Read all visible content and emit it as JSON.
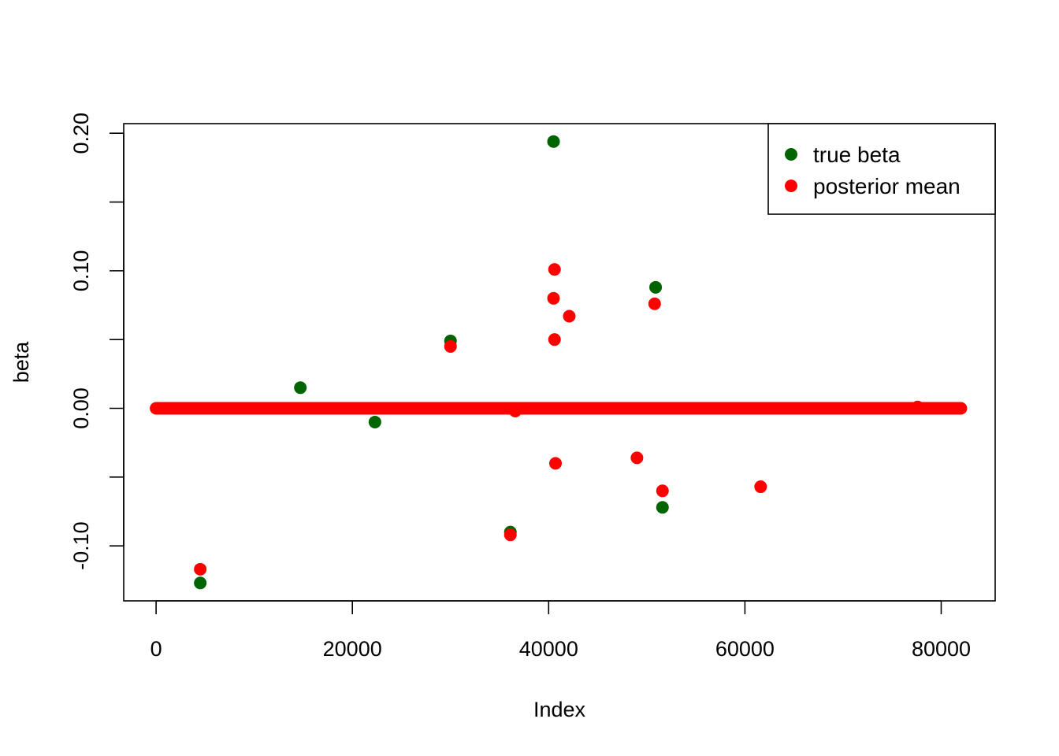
{
  "chart_data": {
    "type": "scatter",
    "title": "",
    "xlabel": "Index",
    "ylabel": "beta",
    "xlim": [
      -3300,
      85500
    ],
    "ylim": [
      -0.14,
      0.207
    ],
    "x_ticks": [
      0,
      20000,
      40000,
      60000,
      80000
    ],
    "x_tick_labels": [
      "0",
      "20000",
      "40000",
      "60000",
      "80000"
    ],
    "y_ticks": [
      -0.1,
      -0.05,
      0.0,
      0.05,
      0.1,
      0.15,
      0.2
    ],
    "y_tick_labels": [
      "-0.10",
      "",
      "0.00",
      "",
      "0.10",
      "",
      "0.20"
    ],
    "grid": false,
    "legend_position": "top-right",
    "zero_band": {
      "x_start": 0,
      "x_end": 82000,
      "y": 0.0,
      "color": "#ff0000"
    },
    "series": [
      {
        "name": "true beta",
        "color": "#006400",
        "points": [
          {
            "x": 4500,
            "y": -0.127
          },
          {
            "x": 14700,
            "y": 0.015
          },
          {
            "x": 22300,
            "y": -0.01
          },
          {
            "x": 30000,
            "y": 0.049
          },
          {
            "x": 36100,
            "y": -0.09
          },
          {
            "x": 40500,
            "y": 0.194
          },
          {
            "x": 50900,
            "y": 0.088
          },
          {
            "x": 51600,
            "y": -0.072
          }
        ]
      },
      {
        "name": "posterior mean",
        "color": "#ff0000",
        "points": [
          {
            "x": 4500,
            "y": -0.117
          },
          {
            "x": 30000,
            "y": 0.045
          },
          {
            "x": 36100,
            "y": -0.092
          },
          {
            "x": 40600,
            "y": 0.101
          },
          {
            "x": 40500,
            "y": 0.08
          },
          {
            "x": 42100,
            "y": 0.067
          },
          {
            "x": 40600,
            "y": 0.05
          },
          {
            "x": 40700,
            "y": -0.04
          },
          {
            "x": 49000,
            "y": -0.036
          },
          {
            "x": 50800,
            "y": 0.076
          },
          {
            "x": 51600,
            "y": -0.06
          },
          {
            "x": 61600,
            "y": -0.057
          },
          {
            "x": 36600,
            "y": -0.002
          },
          {
            "x": 77600,
            "y": 0.001
          }
        ]
      }
    ]
  }
}
